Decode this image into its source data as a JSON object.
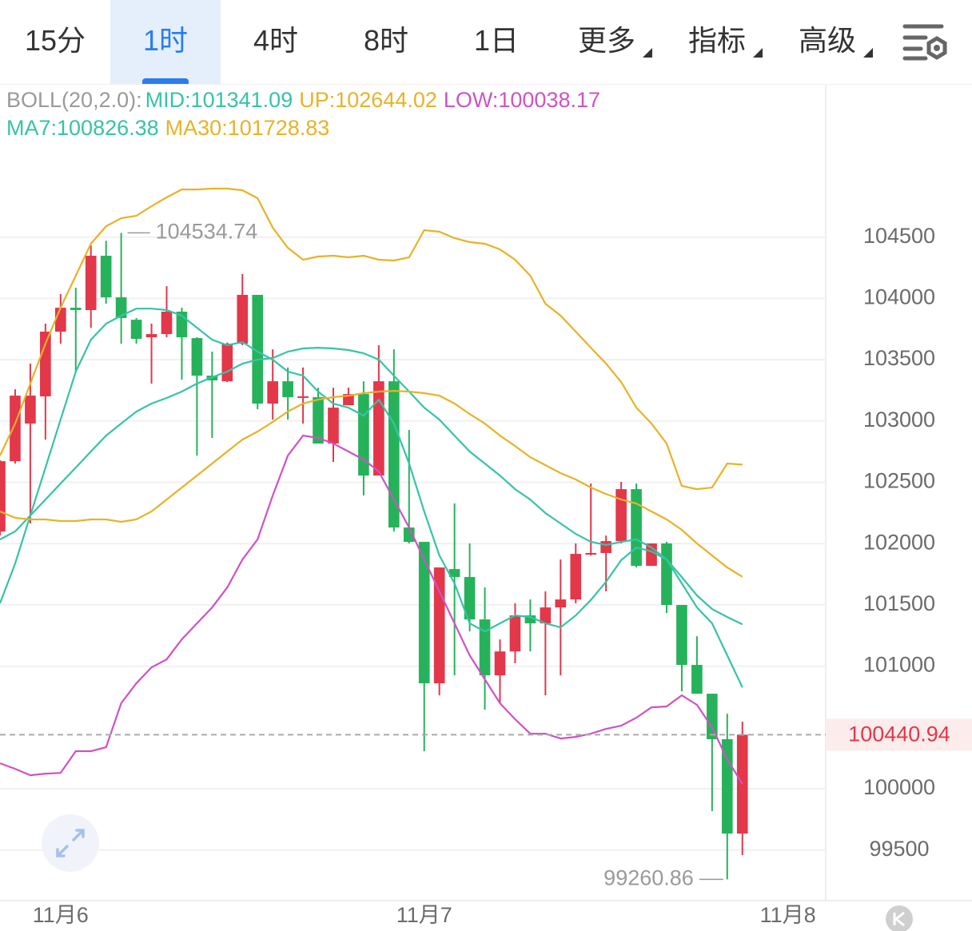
{
  "tabs": [
    "15分",
    "1时",
    "4时",
    "8时",
    "1日",
    "更多",
    "指标",
    "高级"
  ],
  "selected_tab": 1,
  "chart_data": {
    "type": "candlestick",
    "indicator_label": "BOLL(20,2.0):",
    "x": [
      -4,
      -3,
      -2,
      -1,
      0,
      1,
      2,
      3,
      4,
      5,
      6,
      7,
      8,
      9,
      10,
      11,
      12,
      13,
      14,
      15,
      16,
      17,
      18,
      19,
      20,
      21,
      22,
      23,
      24,
      25,
      26,
      27,
      28,
      29,
      30,
      31,
      32,
      33,
      34,
      35,
      36,
      37,
      38,
      39,
      40,
      41,
      42,
      43,
      44,
      45
    ],
    "open": [
      102098,
      102672,
      102979,
      103201,
      103729,
      103924,
      103905,
      104348,
      104009,
      103826,
      103683,
      103709,
      103892,
      103676,
      103370,
      103324,
      103631,
      104029,
      103142,
      103324,
      103194,
      103194,
      102816,
      103129,
      103220,
      102555,
      103324,
      102131,
      102014,
      100860,
      101792,
      101727,
      101381,
      100925,
      101120,
      101414,
      101349,
      101479,
      101544,
      101916,
      101923,
      102020,
      102444,
      101818,
      102001,
      101499,
      101010,
      100775,
      100404,
      99634
    ],
    "high": [
      102680,
      103259,
      103468,
      103794,
      104035,
      104087,
      104433,
      104470,
      104534.74,
      103840,
      103794,
      104100,
      103924,
      103683,
      103566,
      103640,
      104198,
      104029,
      103585,
      103436,
      103436,
      103272,
      103272,
      103272,
      103324,
      103618,
      103585,
      102927,
      102014,
      101805,
      102327,
      102001,
      101642,
      101218,
      101512,
      101544,
      101610,
      101870,
      102001,
      102490,
      102066,
      102503,
      102490,
      102001,
      102014,
      101499,
      101244,
      100775,
      100612,
      100547
    ],
    "low": [
      102066,
      102653,
      102164,
      102848,
      103631,
      103403,
      103761,
      103957,
      103631,
      103631,
      103305,
      103683,
      103338,
      102718,
      102862,
      103318,
      103618,
      103096,
      103011,
      103011,
      102979,
      102816,
      102666,
      103129,
      102392,
      102555,
      102098,
      102001,
      100306,
      100762,
      100925,
      101283,
      100645,
      100697,
      101023,
      101120,
      100762,
      100925,
      101512,
      101903,
      101610,
      102001,
      101805,
      101818,
      101434,
      100794,
      100775,
      99817,
      99260.86,
      99458
    ],
    "close": [
      102672,
      103207,
      103207,
      103729,
      103924,
      103905,
      104348,
      104009,
      103840,
      103670,
      103709,
      103892,
      103683,
      103370,
      103331,
      103631,
      104029,
      103142,
      103324,
      103194,
      103201,
      102816,
      103109,
      103220,
      102555,
      103324,
      102131,
      102014,
      100860,
      101805,
      101727,
      101381,
      100925,
      101120,
      101414,
      101349,
      101479,
      101544,
      101916,
      101923,
      102020,
      102444,
      101818,
      102001,
      101499,
      101010,
      100775,
      100404,
      99634,
      100440.94
    ],
    "up_color": "#e3374a",
    "down_color": "#26b25b",
    "series": [
      {
        "name": "MID:101341.09",
        "color": "#36c3a7",
        "values": [
          102034,
          102099,
          102229,
          102359,
          102490,
          102620,
          102751,
          102881,
          102979,
          103077,
          103142,
          103188,
          103240,
          103305,
          103357,
          103403,
          103468,
          103500,
          103514,
          103566,
          103592,
          103598,
          103592,
          103579,
          103553,
          103500,
          103370,
          103240,
          103109,
          103011,
          102881,
          102751,
          102653,
          102555,
          102444,
          102359,
          102249,
          102164,
          102079,
          102014,
          101988,
          102014,
          102034,
          101968,
          101870,
          101727,
          101577,
          101466,
          101401,
          101341.09
        ]
      },
      {
        "name": "UP:102644.02",
        "color": "#e9b226",
        "values": [
          102718,
          102979,
          103305,
          103631,
          103924,
          104185,
          104446,
          104589,
          104655,
          104674,
          104752,
          104824,
          104889,
          104889,
          104896,
          104896,
          104882,
          104818,
          104577,
          104413,
          104316,
          104342,
          104348,
          104335,
          104348,
          104316,
          104309,
          104335,
          104557,
          104544,
          104492,
          104459,
          104446,
          104400,
          104316,
          104185,
          103957,
          103859,
          103729,
          103598,
          103468,
          103318,
          103109,
          102979,
          102816,
          102470,
          102444,
          102457,
          102653,
          102644.02
        ]
      },
      {
        "name": "LOW:100038.17",
        "color": "#d052c4",
        "values": [
          100208,
          100162,
          100110,
          100123,
          100129,
          100306,
          100306,
          100338,
          100697,
          100860,
          100990,
          101055,
          101218,
          101349,
          101479,
          101642,
          101870,
          102034,
          102392,
          102718,
          102881,
          102862,
          102816,
          102751,
          102685,
          102588,
          102359,
          102131,
          101870,
          101610,
          101349,
          101088,
          100893,
          100697,
          100567,
          100449,
          100449,
          100410,
          100423,
          100449,
          100488,
          100514,
          100579,
          100664,
          100671,
          100762,
          100684,
          100501,
          100240,
          100038.17
        ]
      },
      {
        "name": "MA7:100826.38",
        "color": "#36c3a7",
        "values": [
          101512,
          101838,
          102229,
          102620,
          103011,
          103403,
          103663,
          103794,
          103859,
          103917,
          103917,
          103905,
          103859,
          103761,
          103663,
          103618,
          103644,
          103566,
          103500,
          103403,
          103370,
          103240,
          103142,
          103109,
          103044,
          103174,
          102979,
          102653,
          102262,
          101903,
          101675,
          101349,
          101283,
          101349,
          101414,
          101401,
          101349,
          101316,
          101414,
          101540,
          101688,
          101864,
          101968,
          101936,
          101870,
          101675,
          101479,
          101349,
          101088,
          100826.38
        ]
      },
      {
        "name": "MA30:101728.83",
        "color": "#e9b226",
        "values": [
          102262,
          102210,
          102197,
          102197,
          102184,
          102184,
          102197,
          102197,
          102177,
          102197,
          102262,
          102359,
          102457,
          102555,
          102653,
          102751,
          102848,
          102914,
          102992,
          103077,
          103142,
          103174,
          103194,
          103207,
          103227,
          103240,
          103246,
          103240,
          103227,
          103207,
          103142,
          103057,
          102979,
          102881,
          102796,
          102705,
          102640,
          102575,
          102523,
          102457,
          102405,
          102359,
          102327,
          102262,
          102197,
          102112,
          102001,
          101903,
          101805,
          101728.83
        ]
      }
    ],
    "high_marker": 104534.74,
    "low_marker": 99260.86,
    "last_price": 100440.94,
    "xlim": [
      -4,
      50.5
    ],
    "xticks": [
      {
        "value": 0,
        "label": "11月6"
      },
      {
        "value": 24,
        "label": "11月7"
      },
      {
        "value": 48,
        "label": "11月8"
      }
    ],
    "ylim": [
      99100,
      105750
    ],
    "yticks": [
      99500,
      100000,
      101000,
      101500,
      102000,
      102500,
      103000,
      103500,
      104000,
      104500
    ],
    "grid": true
  }
}
